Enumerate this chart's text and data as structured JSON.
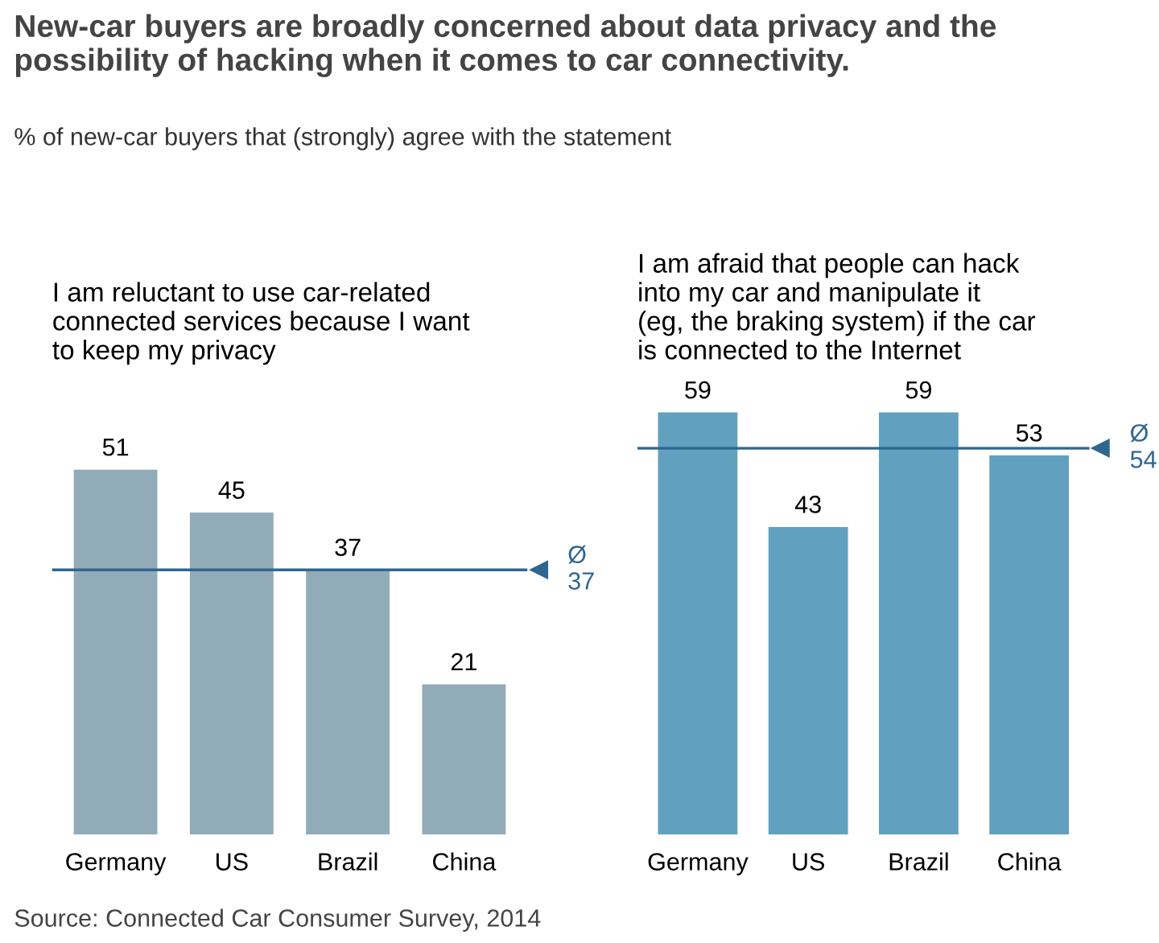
{
  "chart_data": [
    {
      "type": "bar",
      "title": "I am reluctant to use car-related\nconnected services because I want\nto keep my privacy",
      "categories": [
        "Germany",
        "US",
        "Brazil",
        "China"
      ],
      "values": [
        51,
        45,
        37,
        21
      ],
      "color": "#92abb9",
      "data_labels": true,
      "grid": false,
      "legend": false,
      "ref_lines": [
        {
          "axis": "y",
          "value": 37,
          "label": "Ø\n37",
          "color": "#2f6690"
        }
      ],
      "annotations": [
        "New-car buyers are broadly concerned about data privacy and the\npossibility of hacking when it comes to car connectivity.",
        "% of new-car buyers that (strongly) agree with the statement",
        "Source: Connected Car Consumer Survey, 2014"
      ]
    },
    {
      "type": "bar",
      "title": "I am afraid that people can hack\ninto my car and manipulate it\n(eg, the braking system) if the car\nis connected to the Internet",
      "categories": [
        "Germany",
        "US",
        "Brazil",
        "China"
      ],
      "values": [
        59,
        43,
        59,
        53
      ],
      "color": "#62a0c0",
      "data_labels": true,
      "grid": false,
      "legend": false,
      "ref_lines": [
        {
          "axis": "y",
          "value": 54,
          "label": "Ø\n54",
          "color": "#2f6690"
        }
      ]
    }
  ]
}
